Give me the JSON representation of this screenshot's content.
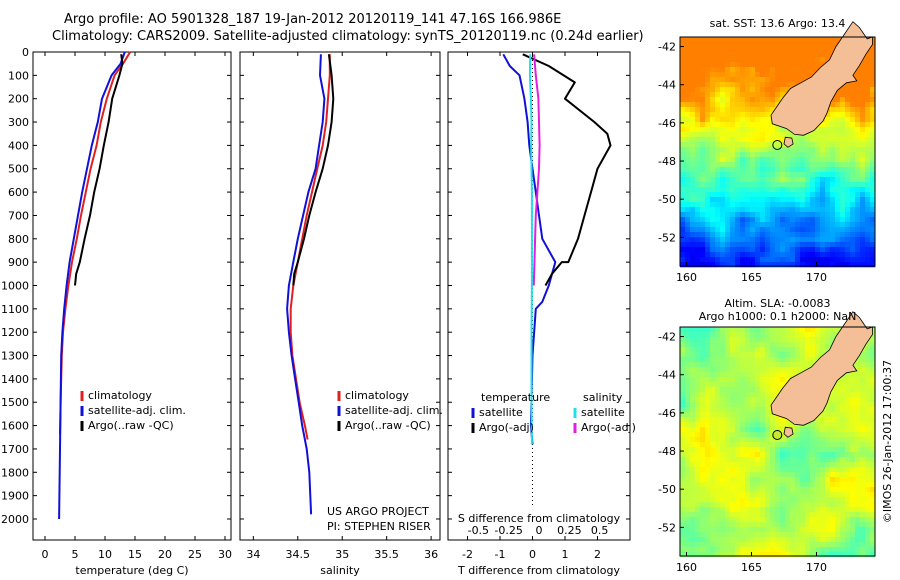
{
  "header": {
    "line1": "Argo profile: AO 5901328_187 19-Jan-2012 20120119_141 47.16S 166.986E",
    "line2": "Climatology: CARS2009. Satellite-adjusted climatology: synTS_20120119.nc (0.24d earlier)"
  },
  "colors": {
    "climatology": "#e02020",
    "satellite": "#1010d8",
    "argo": "#000000",
    "sal_satellite": "#20e0e8",
    "sal_argo": "#e020e0",
    "land": "#f4bf96"
  },
  "chart_data": [
    {
      "id": "temperature",
      "type": "line",
      "xlabel": "temperature (deg C)",
      "xlim": [
        -2,
        31
      ],
      "xticks": [
        0,
        5,
        10,
        15,
        20,
        25,
        30
      ],
      "ylim": [
        0,
        2090
      ],
      "yticks": [
        0,
        100,
        200,
        300,
        400,
        500,
        600,
        700,
        800,
        900,
        1000,
        1100,
        1200,
        1300,
        1400,
        1500,
        1600,
        1700,
        1800,
        1900,
        2000
      ],
      "legend": [
        "climatology",
        "satellite-adj. clim.",
        "Argo(..raw -QC)"
      ],
      "series": [
        {
          "name": "climatology",
          "color": "#e02020",
          "x": [
            14.2,
            13,
            11.6,
            10.3,
            9.3,
            8.6,
            7.6,
            6.8,
            6.0,
            5.3,
            4.5,
            3.9,
            3.4,
            3.0,
            2.8,
            2.7,
            2.6,
            2.5
          ],
          "y": [
            0,
            50,
            100,
            200,
            300,
            400,
            500,
            600,
            700,
            800,
            900,
            1000,
            1100,
            1200,
            1300,
            1400,
            1500,
            1640
          ]
        },
        {
          "name": "satellite-adj. clim.",
          "color": "#1010d8",
          "x": [
            13.3,
            12.6,
            11.1,
            9.5,
            8.8,
            7.8,
            7.0,
            6.2,
            5.5,
            4.8,
            4.1,
            3.6,
            3.2,
            2.9,
            2.7,
            2.6,
            2.5,
            2.45,
            2.4,
            2.35
          ],
          "y": [
            0,
            50,
            100,
            200,
            300,
            400,
            500,
            600,
            700,
            800,
            900,
            1000,
            1100,
            1200,
            1300,
            1500,
            1700,
            1800,
            1900,
            2000
          ]
        },
        {
          "name": "Argo(..raw -QC)",
          "color": "#000000",
          "x": [
            12.7,
            12.9,
            12.4,
            11.2,
            10.6,
            9.8,
            9.1,
            8.2,
            7.5,
            6.6,
            5.8,
            5.2,
            5.0
          ],
          "y": [
            10,
            50,
            100,
            200,
            300,
            400,
            500,
            600,
            700,
            800,
            900,
            950,
            1000
          ]
        }
      ]
    },
    {
      "id": "salinity",
      "type": "line",
      "xlabel": "salinity",
      "xlim": [
        33.85,
        36.1
      ],
      "xticks": [
        34,
        34.5,
        35,
        35.5,
        36
      ],
      "ylim": [
        0,
        2090
      ],
      "legend": [
        "climatology",
        "satellite-adj. clim.",
        "Argo(..raw -QC)"
      ],
      "annotation": [
        "US ARGO PROJECT",
        "PI: STEPHEN RISER"
      ],
      "series": [
        {
          "name": "climatology",
          "color": "#e02020",
          "x": [
            34.86,
            34.86,
            34.84,
            34.82,
            34.78,
            34.72,
            34.66,
            34.6,
            34.55,
            34.5,
            34.45,
            34.42,
            34.42,
            34.44,
            34.48,
            34.52,
            34.58,
            34.61
          ],
          "y": [
            10,
            100,
            200,
            300,
            400,
            500,
            600,
            700,
            800,
            900,
            1000,
            1100,
            1200,
            1300,
            1400,
            1500,
            1600,
            1660
          ]
        },
        {
          "name": "satellite-adj. clim.",
          "color": "#1010d8",
          "x": [
            34.76,
            34.75,
            34.8,
            34.78,
            34.74,
            34.7,
            34.62,
            34.56,
            34.5,
            34.45,
            34.4,
            34.38,
            34.4,
            34.43,
            34.47,
            34.51,
            34.55,
            34.6,
            34.63,
            34.65
          ],
          "y": [
            10,
            100,
            200,
            300,
            400,
            500,
            600,
            700,
            800,
            900,
            1000,
            1100,
            1200,
            1300,
            1400,
            1500,
            1600,
            1700,
            1800,
            1980
          ]
        },
        {
          "name": "Argo(..raw -QC)",
          "color": "#000000",
          "x": [
            34.85,
            34.88,
            34.9,
            34.88,
            34.84,
            34.78,
            34.7,
            34.63,
            34.57,
            34.5,
            34.46,
            34.45
          ],
          "y": [
            10,
            100,
            200,
            300,
            400,
            500,
            600,
            700,
            800,
            900,
            950,
            1000
          ]
        }
      ]
    },
    {
      "id": "differences",
      "type": "line",
      "xlabel": "T difference from climatology",
      "xlabel2": "S difference from climatology",
      "xlim": [
        -2.6,
        3.0
      ],
      "xticks": [
        -2,
        -1,
        0,
        1,
        2
      ],
      "xticks_top": [
        -0.5,
        -0.25,
        0,
        0.25,
        0.5
      ],
      "ylim": [
        0,
        2090
      ],
      "legend_temperature": {
        "heading": "temperature",
        "items": [
          "satellite",
          "Argo(-adj)"
        ]
      },
      "legend_salinity": {
        "heading": "salinity",
        "items": [
          "satellite",
          "Argo(-adj)"
        ]
      },
      "series": [
        {
          "name": "temperature satellite",
          "color": "#1010d8",
          "x": [
            -0.9,
            -0.7,
            -0.4,
            -0.25,
            -0.15,
            -0.1,
            0,
            0.1,
            0.2,
            0.3,
            0.7,
            0.5,
            0.3,
            0.1,
            0,
            -0.05,
            0.0
          ],
          "y": [
            10,
            60,
            100,
            200,
            300,
            400,
            500,
            600,
            700,
            800,
            900,
            1000,
            1070,
            1100,
            1300,
            1600,
            1680
          ]
        },
        {
          "name": "temperature Argo(-adj)",
          "color": "#000000",
          "x": [
            -0.3,
            0.5,
            1.3,
            1.0,
            1.9,
            2.3,
            2.4,
            2.0,
            1.8,
            1.6,
            1.4,
            1.1,
            0.9,
            0.6,
            0.4
          ],
          "y": [
            10,
            60,
            130,
            200,
            300,
            350,
            400,
            500,
            600,
            700,
            800,
            900,
            900,
            950,
            1000
          ]
        },
        {
          "name": "salinity satellite",
          "color": "#20e0e8",
          "x": [
            -0.07,
            -0.08,
            -0.05,
            -0.03,
            -0.04,
            -0.03,
            -0.02,
            -0.02,
            -0.02,
            -0.03,
            -0.03,
            -0.02
          ],
          "y": [
            10,
            100,
            200,
            300,
            400,
            500,
            600,
            800,
            1000,
            1200,
            1500,
            1680
          ]
        },
        {
          "name": "salinity Argo(-adj)",
          "color": "#e020e0",
          "x": [
            0.05,
            0.1,
            0.18,
            0.2,
            0.22,
            0.2,
            0.15,
            0.1,
            0.08,
            0.06,
            0.05,
            0.04
          ],
          "y": [
            10,
            100,
            200,
            300,
            400,
            500,
            600,
            700,
            800,
            900,
            950,
            1000
          ]
        }
      ]
    },
    {
      "id": "sst_map",
      "type": "heatmap",
      "title": "sat. SST: 13.6  Argo: 13.4",
      "xticks": [
        160,
        165,
        170
      ],
      "yticks": [
        -42,
        -44,
        -46,
        -48,
        -50,
        -52
      ],
      "xlim": [
        159.5,
        174.5
      ],
      "ylim": [
        -53.5,
        -41.5
      ],
      "argo_position": [
        166.986,
        -47.16
      ]
    },
    {
      "id": "sla_map",
      "type": "heatmap",
      "title": "Altim. SLA: -0.0083",
      "subtitle": "Argo h1000: 0.1  h2000: NaN",
      "credit": "©IMOS 26-Jan-2012 17:00:37",
      "xticks": [
        160,
        165,
        170
      ],
      "yticks": [
        -42,
        -44,
        -46,
        -48,
        -50,
        -52
      ],
      "xlim": [
        159.5,
        174.5
      ],
      "ylim": [
        -53.5,
        -41.5
      ],
      "argo_position": [
        166.986,
        -47.16
      ]
    }
  ]
}
